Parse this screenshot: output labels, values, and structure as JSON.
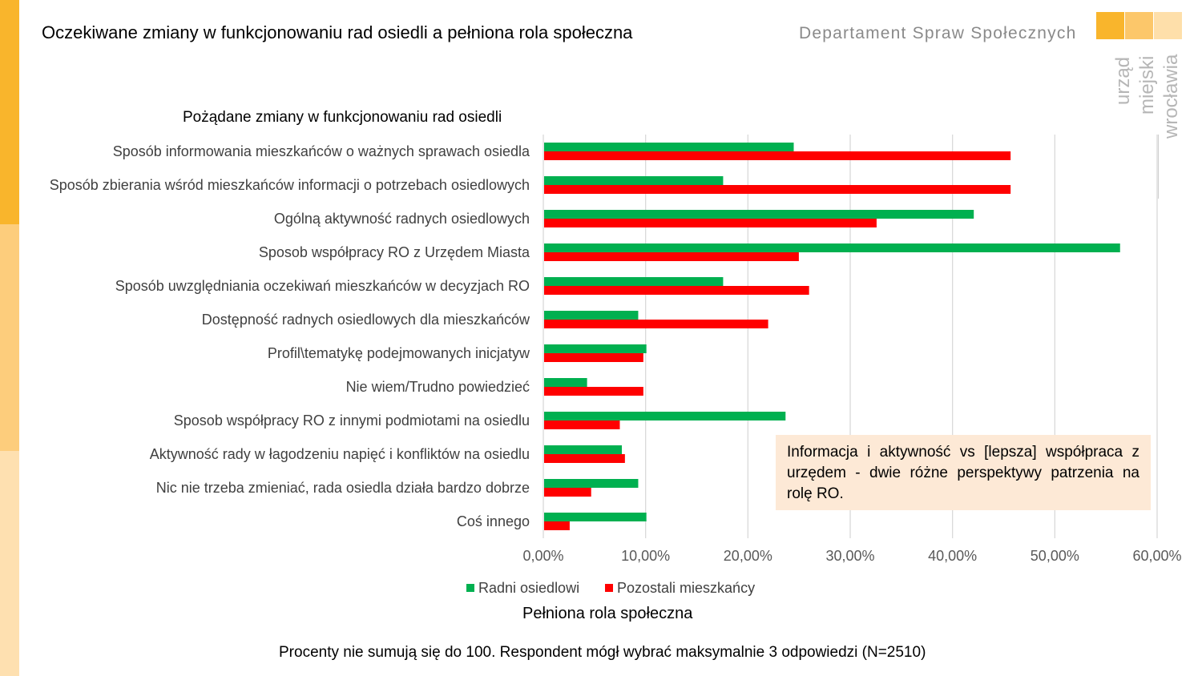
{
  "header": {
    "title": "Oczekiwane zmiany w funkcjonowaniu rad osiedli a pełniona rola społeczna",
    "department": "Departament Spraw Społecznych",
    "logo_lines": [
      "urząd",
      "miejski",
      "wrocławia"
    ]
  },
  "colors": {
    "accent_dark": "#f9b52c",
    "accent_mid": "#fdcd7c",
    "accent_light": "#fee0b0",
    "series_green": "#00b050",
    "series_red": "#ff0000",
    "grid": "#d9d9d9",
    "annotation_bg": "#fde9d6"
  },
  "chart_data": {
    "type": "bar",
    "orientation": "horizontal",
    "title": "Pożądane zmiany w funkcjonowaniu rad osiedli",
    "xlabel": "Pełniona rola społeczna",
    "ylabel": "",
    "xlim": [
      0,
      60
    ],
    "x_ticks": [
      "0,00%",
      "10,00%",
      "20,00%",
      "30,00%",
      "40,00%",
      "50,00%",
      "60,00%"
    ],
    "grid": "vertical",
    "legend_position": "bottom",
    "categories": [
      "Sposób informowania mieszkańców o ważnych sprawach osiedla",
      "Sposób zbierania wśród mieszkańców informacji o potrzebach osiedlowych",
      "Ogólną aktywność radnych osiedlowych",
      "Sposob współpracy RO z Urzędem Miasta",
      "Sposób uwzględniania oczekiwań mieszkańców w decyzjach RO",
      "Dostępność radnych osiedlowych dla mieszkańców",
      "Profil\\tematykę podejmowanych inicjatyw",
      "Nie wiem/Trudno powiedzieć",
      "Sposob współpracy RO z innymi podmiotami na osiedlu",
      "Aktywność rady w łagodzeniu napięć i konfliktów na osiedlu",
      "Nic nie trzeba zmieniać, rada osiedla działa bardzo dobrze",
      "Coś innego"
    ],
    "series": [
      {
        "name": "Radni osiedlowi",
        "color": "#00b050",
        "values": [
          24.4,
          17.5,
          42.0,
          56.3,
          17.5,
          9.2,
          10.0,
          4.2,
          23.6,
          7.6,
          9.2,
          10.0
        ]
      },
      {
        "name": "Pozostali mieszkańcy",
        "color": "#ff0000",
        "values": [
          45.6,
          45.6,
          32.5,
          24.9,
          25.9,
          21.9,
          9.7,
          9.7,
          7.4,
          7.9,
          4.6,
          2.5
        ]
      }
    ]
  },
  "annotation": "Informacja i aktywność vs [lepsza] współpraca z urzędem - dwie różne perspektywy patrzenia na rolę RO.",
  "footnote": "Procenty nie sumują się do 100. Respondent mógł wybrać maksymalnie 3 odpowiedzi (N=2510)"
}
